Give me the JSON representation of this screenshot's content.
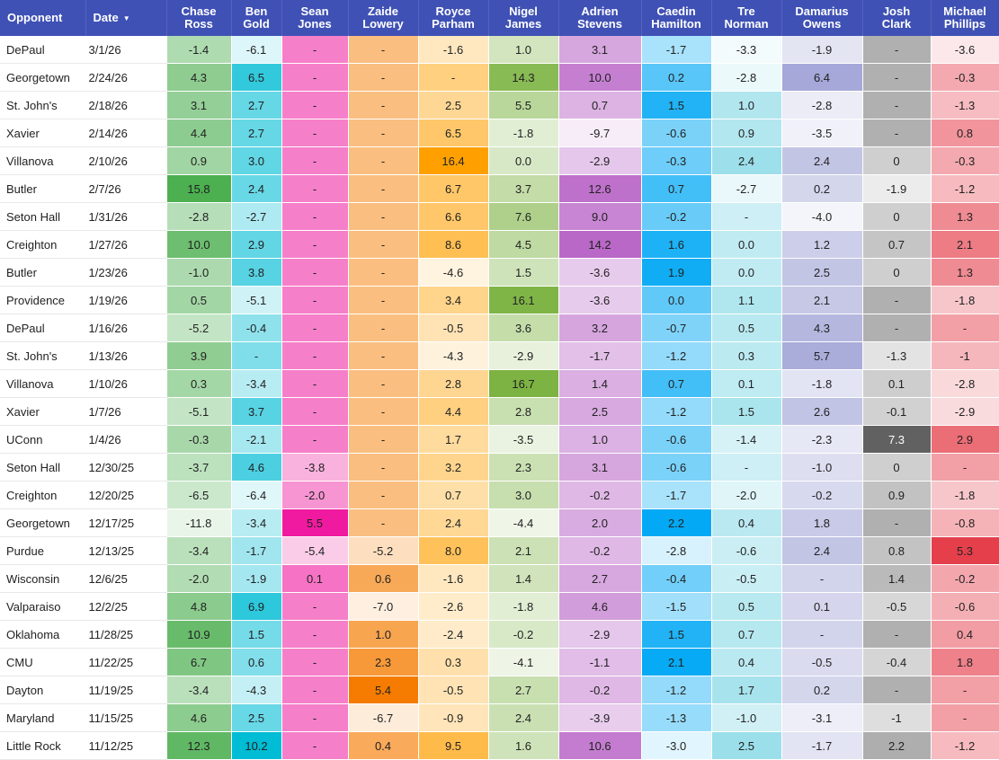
{
  "header": {
    "opponent": "Opponent",
    "date": "Date",
    "sort_icon": "▼",
    "players": [
      [
        "Chase",
        "Ross"
      ],
      [
        "Ben",
        "Gold"
      ],
      [
        "Sean",
        "Jones"
      ],
      [
        "Zaide",
        "Lowery"
      ],
      [
        "Royce",
        "Parham"
      ],
      [
        "Nigel",
        "James"
      ],
      [
        "Adrien",
        "Stevens"
      ],
      [
        "Caedin",
        "Hamilton"
      ],
      [
        "Tre",
        "Norman"
      ],
      [
        "Damarius",
        "Owens"
      ],
      [
        "Josh",
        "Clark"
      ],
      [
        "Michael",
        "Phillips"
      ]
    ]
  },
  "colors": {
    "header_bg": "#3f51b5",
    "chase_ross": [
      "#ffffff",
      "#4caf50"
    ],
    "ben_gold": [
      "#ffffff",
      "#00bcd4"
    ],
    "sean_jones": [
      "#fce4f2",
      "#f01aa0"
    ],
    "zaide_lowery": [
      "#ffffff",
      "#f57c00"
    ],
    "royce_parham": [
      "#ffffff",
      "#ffa000"
    ],
    "nigel_james": [
      "#ffffff",
      "#7cb342"
    ],
    "adrien_stevens": [
      "#ffffff",
      "#ba68c8"
    ],
    "caedin_hamilton": [
      "#ffffff",
      "#03a9f4"
    ],
    "tre_norman": [
      "#ffffff",
      "#9bdfea"
    ],
    "damarius_owens": [
      "#ffffff",
      "#a5a8d8"
    ],
    "josh_clark": [
      "#ffffff",
      "#616161"
    ],
    "michael_phillips": [
      "#ffffff",
      "#e53f4c"
    ]
  },
  "rows": [
    {
      "opponent": "DePaul",
      "date": "3/1/26",
      "values": [
        "-1.4",
        "-6.1",
        "-",
        "-",
        "-1.6",
        "1.0",
        "3.1",
        "-1.7",
        "-3.3",
        "-1.9",
        "-",
        "-3.6"
      ]
    },
    {
      "opponent": "Georgetown",
      "date": "2/24/26",
      "values": [
        "4.3",
        "6.5",
        "-",
        "-",
        "-",
        "14.3",
        "10.0",
        "0.2",
        "-2.8",
        "6.4",
        "-",
        "-0.3"
      ]
    },
    {
      "opponent": "St. John's",
      "date": "2/18/26",
      "values": [
        "3.1",
        "2.7",
        "-",
        "-",
        "2.5",
        "5.5",
        "0.7",
        "1.5",
        "1.0",
        "-2.8",
        "-",
        "-1.3"
      ]
    },
    {
      "opponent": "Xavier",
      "date": "2/14/26",
      "values": [
        "4.4",
        "2.7",
        "-",
        "-",
        "6.5",
        "-1.8",
        "-9.7",
        "-0.6",
        "0.9",
        "-3.5",
        "-",
        "0.8"
      ]
    },
    {
      "opponent": "Villanova",
      "date": "2/10/26",
      "values": [
        "0.9",
        "3.0",
        "-",
        "-",
        "16.4",
        "0.0",
        "-2.9",
        "-0.3",
        "2.4",
        "2.4",
        "0",
        "-0.3"
      ]
    },
    {
      "opponent": "Butler",
      "date": "2/7/26",
      "values": [
        "15.8",
        "2.4",
        "-",
        "-",
        "6.7",
        "3.7",
        "12.6",
        "0.7",
        "-2.7",
        "0.2",
        "-1.9",
        "-1.2"
      ]
    },
    {
      "opponent": "Seton Hall",
      "date": "1/31/26",
      "values": [
        "-2.8",
        "-2.7",
        "-",
        "-",
        "6.6",
        "7.6",
        "9.0",
        "-0.2",
        "-",
        "-4.0",
        "0",
        "1.3"
      ]
    },
    {
      "opponent": "Creighton",
      "date": "1/27/26",
      "values": [
        "10.0",
        "2.9",
        "-",
        "-",
        "8.6",
        "4.5",
        "14.2",
        "1.6",
        "0.0",
        "1.2",
        "0.7",
        "2.1"
      ]
    },
    {
      "opponent": "Butler",
      "date": "1/23/26",
      "values": [
        "-1.0",
        "3.8",
        "-",
        "-",
        "-4.6",
        "1.5",
        "-3.6",
        "1.9",
        "0.0",
        "2.5",
        "0",
        "1.3"
      ]
    },
    {
      "opponent": "Providence",
      "date": "1/19/26",
      "values": [
        "0.5",
        "-5.1",
        "-",
        "-",
        "3.4",
        "16.1",
        "-3.6",
        "0.0",
        "1.1",
        "2.1",
        "-",
        "-1.8"
      ]
    },
    {
      "opponent": "DePaul",
      "date": "1/16/26",
      "values": [
        "-5.2",
        "-0.4",
        "-",
        "-",
        "-0.5",
        "3.6",
        "3.2",
        "-0.7",
        "0.5",
        "4.3",
        "-",
        "-"
      ]
    },
    {
      "opponent": "St. John's",
      "date": "1/13/26",
      "values": [
        "3.9",
        "-",
        "-",
        "-",
        "-4.3",
        "-2.9",
        "-1.7",
        "-1.2",
        "0.3",
        "5.7",
        "-1.3",
        "-1"
      ]
    },
    {
      "opponent": "Villanova",
      "date": "1/10/26",
      "values": [
        "0.3",
        "-3.4",
        "-",
        "-",
        "2.8",
        "16.7",
        "1.4",
        "0.7",
        "0.1",
        "-1.8",
        "0.1",
        "-2.8"
      ]
    },
    {
      "opponent": "Xavier",
      "date": "1/7/26",
      "values": [
        "-5.1",
        "3.7",
        "-",
        "-",
        "4.4",
        "2.8",
        "2.5",
        "-1.2",
        "1.5",
        "2.6",
        "-0.1",
        "-2.9"
      ]
    },
    {
      "opponent": "UConn",
      "date": "1/4/26",
      "values": [
        "-0.3",
        "-2.1",
        "-",
        "-",
        "1.7",
        "-3.5",
        "1.0",
        "-0.6",
        "-1.4",
        "-2.3",
        "7.3",
        "2.9"
      ]
    },
    {
      "opponent": "Seton Hall",
      "date": "12/30/25",
      "values": [
        "-3.7",
        "4.6",
        "-3.8",
        "-",
        "3.2",
        "2.3",
        "3.1",
        "-0.6",
        "-",
        "-1.0",
        "0",
        "-"
      ]
    },
    {
      "opponent": "Creighton",
      "date": "12/20/25",
      "values": [
        "-6.5",
        "-6.4",
        "-2.0",
        "-",
        "0.7",
        "3.0",
        "-0.2",
        "-1.7",
        "-2.0",
        "-0.2",
        "0.9",
        "-1.8"
      ]
    },
    {
      "opponent": "Georgetown",
      "date": "12/17/25",
      "values": [
        "-11.8",
        "-3.4",
        "5.5",
        "-",
        "2.4",
        "-4.4",
        "2.0",
        "2.2",
        "0.4",
        "1.8",
        "-",
        "-0.8"
      ]
    },
    {
      "opponent": "Purdue",
      "date": "12/13/25",
      "values": [
        "-3.4",
        "-1.7",
        "-5.4",
        "-5.2",
        "8.0",
        "2.1",
        "-0.2",
        "-2.8",
        "-0.6",
        "2.4",
        "0.8",
        "5.3"
      ]
    },
    {
      "opponent": "Wisconsin",
      "date": "12/6/25",
      "values": [
        "-2.0",
        "-1.9",
        "0.1",
        "0.6",
        "-1.6",
        "1.4",
        "2.7",
        "-0.4",
        "-0.5",
        "-",
        "1.4",
        "-0.2"
      ]
    },
    {
      "opponent": "Valparaiso",
      "date": "12/2/25",
      "values": [
        "4.8",
        "6.9",
        "-",
        "-7.0",
        "-2.6",
        "-1.8",
        "4.6",
        "-1.5",
        "0.5",
        "0.1",
        "-0.5",
        "-0.6"
      ]
    },
    {
      "opponent": "Oklahoma",
      "date": "11/28/25",
      "values": [
        "10.9",
        "1.5",
        "-",
        "1.0",
        "-2.4",
        "-0.2",
        "-2.9",
        "1.5",
        "0.7",
        "-",
        "-",
        "0.4"
      ]
    },
    {
      "opponent": "CMU",
      "date": "11/22/25",
      "values": [
        "6.7",
        "0.6",
        "-",
        "2.3",
        "0.3",
        "-4.1",
        "-1.1",
        "2.1",
        "0.4",
        "-0.5",
        "-0.4",
        "1.8"
      ]
    },
    {
      "opponent": "Dayton",
      "date": "11/19/25",
      "values": [
        "-3.4",
        "-4.3",
        "-",
        "5.4",
        "-0.5",
        "2.7",
        "-0.2",
        "-1.2",
        "1.7",
        "0.2",
        "-",
        "-"
      ]
    },
    {
      "opponent": "Maryland",
      "date": "11/15/25",
      "values": [
        "4.6",
        "2.5",
        "-",
        "-6.7",
        "-0.9",
        "2.4",
        "-3.9",
        "-1.3",
        "-1.0",
        "-3.1",
        "-1",
        "-"
      ]
    },
    {
      "opponent": "Little Rock",
      "date": "11/12/25",
      "values": [
        "12.3",
        "10.2",
        "-",
        "0.4",
        "9.5",
        "1.6",
        "10.6",
        "-3.0",
        "2.5",
        "-1.7",
        "2.2",
        "-1.2"
      ]
    }
  ]
}
